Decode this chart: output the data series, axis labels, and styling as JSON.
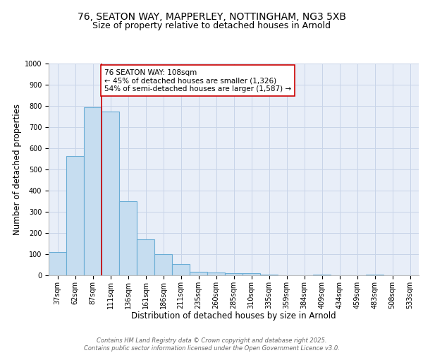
{
  "title_line1": "76, SEATON WAY, MAPPERLEY, NOTTINGHAM, NG3 5XB",
  "title_line2": "Size of property relative to detached houses in Arnold",
  "xlabel": "Distribution of detached houses by size in Arnold",
  "ylabel": "Number of detached properties",
  "categories": [
    "37sqm",
    "62sqm",
    "87sqm",
    "111sqm",
    "136sqm",
    "161sqm",
    "186sqm",
    "211sqm",
    "235sqm",
    "260sqm",
    "285sqm",
    "310sqm",
    "335sqm",
    "359sqm",
    "384sqm",
    "409sqm",
    "434sqm",
    "459sqm",
    "483sqm",
    "508sqm",
    "533sqm"
  ],
  "values": [
    110,
    565,
    795,
    775,
    350,
    170,
    100,
    55,
    18,
    15,
    10,
    10,
    5,
    0,
    0,
    5,
    0,
    0,
    5,
    0,
    0
  ],
  "bar_color": "#c6ddf0",
  "bar_edge_color": "#6aadd5",
  "bar_edge_width": 0.8,
  "red_line_index": 3,
  "red_line_color": "#cc0000",
  "annotation_text": "76 SEATON WAY: 108sqm\n← 45% of detached houses are smaller (1,326)\n54% of semi-detached houses are larger (1,587) →",
  "annotation_box_color": "#ffffff",
  "annotation_box_edge_color": "#cc0000",
  "ylim": [
    0,
    1000
  ],
  "yticks": [
    0,
    100,
    200,
    300,
    400,
    500,
    600,
    700,
    800,
    900,
    1000
  ],
  "grid_color": "#c8d4e8",
  "background_color": "#e8eef8",
  "footer_text": "Contains HM Land Registry data © Crown copyright and database right 2025.\nContains public sector information licensed under the Open Government Licence v3.0.",
  "title_fontsize": 10,
  "subtitle_fontsize": 9,
  "axis_label_fontsize": 8.5,
  "tick_fontsize": 7,
  "annotation_fontsize": 7.5,
  "footer_fontsize": 6
}
